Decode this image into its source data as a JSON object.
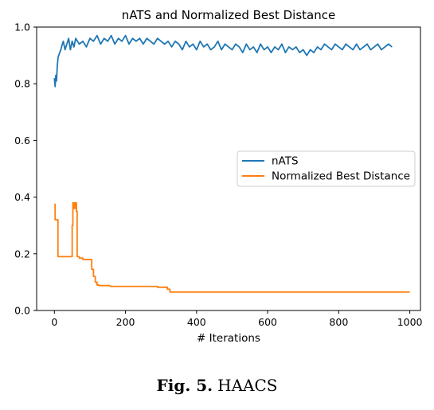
{
  "chart_data": {
    "type": "line",
    "title": "nATS and Normalized Best Distance",
    "xlabel": "# Iterations",
    "ylabel": "",
    "xlim": [
      -50,
      1030
    ],
    "ylim": [
      0.0,
      1.0
    ],
    "xticks": [
      0,
      200,
      400,
      600,
      800,
      1000
    ],
    "yticks": [
      0.0,
      0.2,
      0.4,
      0.6,
      0.8,
      1.0
    ],
    "xtick_labels": [
      "0",
      "200",
      "400",
      "600",
      "800",
      "1000"
    ],
    "ytick_labels": [
      "0.0",
      "0.2",
      "0.4",
      "0.6",
      "0.8",
      "1.0"
    ],
    "grid": false,
    "legend_position": "center-right",
    "series": [
      {
        "name": "nATS",
        "color": "#1f77b4",
        "x": [
          0,
          2,
          4,
          6,
          8,
          10,
          12,
          15,
          18,
          20,
          25,
          30,
          35,
          40,
          45,
          50,
          55,
          60,
          70,
          80,
          90,
          100,
          110,
          120,
          130,
          140,
          150,
          160,
          170,
          180,
          190,
          200,
          210,
          220,
          230,
          240,
          250,
          260,
          270,
          280,
          290,
          300,
          310,
          320,
          330,
          340,
          350,
          360,
          370,
          380,
          390,
          400,
          410,
          420,
          430,
          440,
          450,
          460,
          470,
          480,
          490,
          500,
          510,
          520,
          530,
          540,
          550,
          560,
          570,
          580,
          590,
          600,
          610,
          620,
          630,
          640,
          650,
          660,
          670,
          680,
          690,
          700,
          710,
          720,
          730,
          740,
          750,
          760,
          770,
          780,
          790,
          800,
          810,
          820,
          830,
          840,
          850,
          860,
          870,
          880,
          890,
          900,
          910,
          920,
          930,
          940,
          950
        ],
        "y": [
          0.82,
          0.79,
          0.83,
          0.81,
          0.86,
          0.89,
          0.9,
          0.91,
          0.92,
          0.93,
          0.95,
          0.92,
          0.94,
          0.96,
          0.92,
          0.95,
          0.93,
          0.96,
          0.94,
          0.95,
          0.93,
          0.96,
          0.95,
          0.97,
          0.94,
          0.96,
          0.95,
          0.97,
          0.94,
          0.96,
          0.95,
          0.97,
          0.94,
          0.96,
          0.95,
          0.96,
          0.94,
          0.96,
          0.95,
          0.94,
          0.96,
          0.95,
          0.94,
          0.95,
          0.93,
          0.95,
          0.94,
          0.92,
          0.95,
          0.93,
          0.94,
          0.92,
          0.95,
          0.93,
          0.94,
          0.92,
          0.93,
          0.95,
          0.92,
          0.94,
          0.93,
          0.92,
          0.94,
          0.93,
          0.91,
          0.94,
          0.92,
          0.93,
          0.91,
          0.94,
          0.92,
          0.93,
          0.91,
          0.93,
          0.92,
          0.94,
          0.91,
          0.93,
          0.92,
          0.93,
          0.91,
          0.92,
          0.9,
          0.92,
          0.91,
          0.93,
          0.92,
          0.94,
          0.93,
          0.92,
          0.94,
          0.93,
          0.92,
          0.94,
          0.93,
          0.92,
          0.94,
          0.92,
          0.93,
          0.94,
          0.92,
          0.93,
          0.94,
          0.92,
          0.93,
          0.94,
          0.93
        ]
      },
      {
        "name": "Normalized Best Distance",
        "color": "#ff7f0e",
        "x": [
          0,
          2,
          2,
          10,
          10,
          50,
          50,
          52,
          52,
          55,
          55,
          58,
          58,
          62,
          62,
          64,
          64,
          70,
          70,
          80,
          80,
          105,
          105,
          110,
          110,
          115,
          115,
          120,
          120,
          125,
          125,
          155,
          155,
          160,
          160,
          290,
          290,
          318,
          318,
          325,
          325,
          1000
        ],
        "y": [
          0.375,
          0.375,
          0.32,
          0.32,
          0.19,
          0.19,
          0.3,
          0.3,
          0.38,
          0.38,
          0.36,
          0.36,
          0.38,
          0.38,
          0.35,
          0.35,
          0.19,
          0.19,
          0.185,
          0.185,
          0.18,
          0.18,
          0.145,
          0.145,
          0.12,
          0.12,
          0.1,
          0.1,
          0.09,
          0.09,
          0.088,
          0.088,
          0.086,
          0.086,
          0.085,
          0.085,
          0.082,
          0.082,
          0.075,
          0.075,
          0.065,
          0.065
        ]
      }
    ]
  },
  "caption": {
    "label": "Fig. 5.",
    "text": "HAACS"
  }
}
